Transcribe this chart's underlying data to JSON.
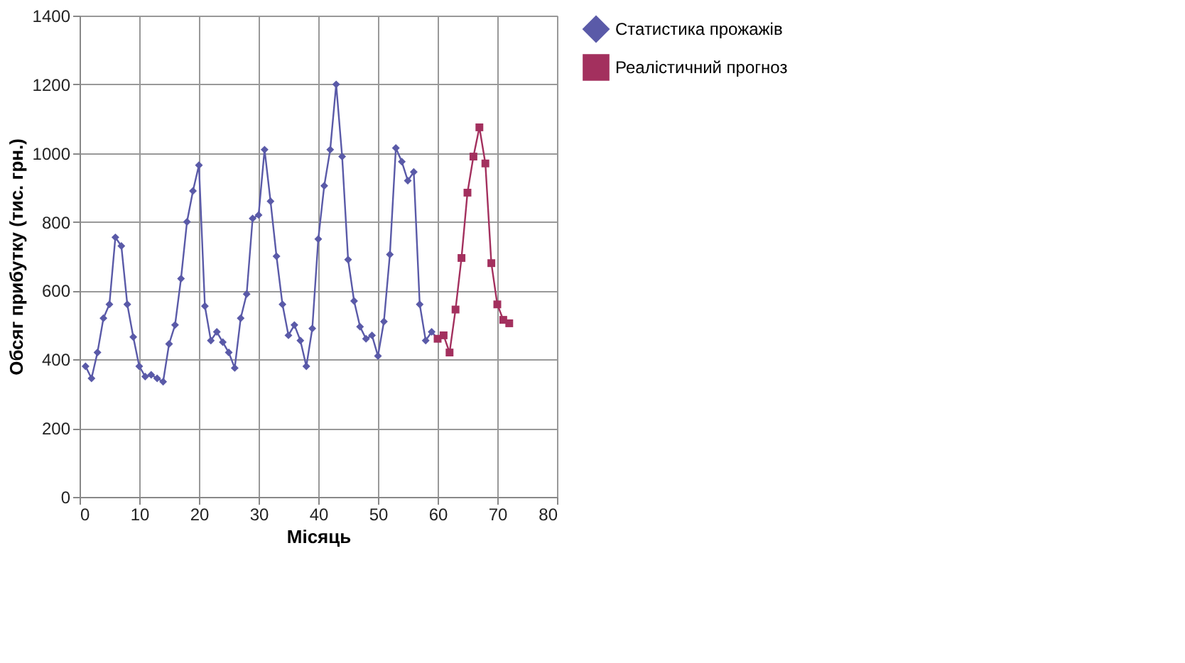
{
  "chart_data": {
    "type": "line",
    "xlabel": "Місяць",
    "ylabel": "Обсяг прибутку (тис. грн.)",
    "xlim": [
      0,
      80
    ],
    "xticks": [
      0,
      10,
      20,
      30,
      40,
      50,
      60,
      70,
      80
    ],
    "ylim": [
      0,
      1400
    ],
    "yticks": [
      0,
      200,
      400,
      600,
      800,
      1000,
      1200,
      1400
    ],
    "grid": true,
    "legend": "right",
    "series": [
      {
        "name": "Статистика прожажів",
        "color": "#5a5aa8",
        "marker": "diamond",
        "x": [
          1,
          2,
          3,
          4,
          5,
          6,
          7,
          8,
          9,
          10,
          11,
          12,
          13,
          14,
          15,
          16,
          17,
          18,
          19,
          20,
          21,
          22,
          23,
          24,
          25,
          26,
          27,
          28,
          29,
          30,
          31,
          32,
          33,
          34,
          35,
          36,
          37,
          38,
          39,
          40,
          41,
          42,
          43,
          44,
          45,
          46,
          47,
          48,
          49,
          50,
          51,
          52,
          53,
          54,
          55,
          56,
          57,
          58,
          59,
          60
        ],
        "values": [
          380,
          345,
          420,
          520,
          560,
          755,
          730,
          560,
          465,
          380,
          350,
          355,
          345,
          335,
          445,
          500,
          635,
          800,
          890,
          965,
          555,
          455,
          480,
          450,
          420,
          375,
          520,
          590,
          810,
          820,
          1010,
          860,
          700,
          560,
          470,
          500,
          455,
          380,
          490,
          750,
          905,
          1010,
          1200,
          990,
          690,
          570,
          495,
          460,
          470,
          410,
          510,
          705,
          1015,
          975,
          920,
          945,
          560,
          455,
          480,
          460
        ]
      },
      {
        "name": "Реалістичний прогноз",
        "color": "#a3305e",
        "marker": "square",
        "x": [
          60,
          61,
          62,
          63,
          64,
          65,
          66,
          67,
          68,
          69,
          70,
          71,
          72
        ],
        "values": [
          460,
          470,
          420,
          545,
          695,
          885,
          990,
          1075,
          970,
          680,
          560,
          515,
          505
        ]
      }
    ]
  }
}
